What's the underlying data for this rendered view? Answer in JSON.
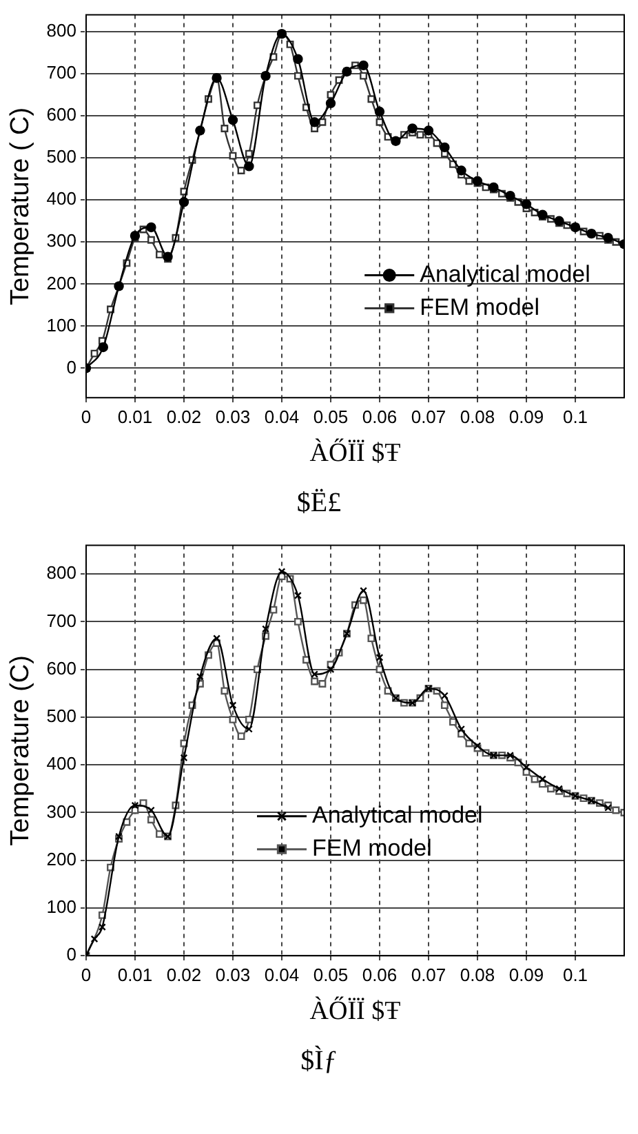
{
  "chart_data": [
    {
      "type": "line",
      "ylabel": "Temperature ( C)",
      "xlabel": "ÀŐÏÏ $Ŧ",
      "annotations": [
        "$Ë£"
      ],
      "xlim": [
        0,
        0.11
      ],
      "xticks": [
        0,
        0.01,
        0.02,
        0.03,
        0.04,
        0.05,
        0.06,
        0.07,
        0.08,
        0.09,
        0.1
      ],
      "ylim": [
        -70,
        840
      ],
      "yticks": [
        0,
        100,
        200,
        300,
        400,
        500,
        600,
        700,
        800
      ],
      "grid": true,
      "legend": "center right",
      "series": [
        {
          "name": "Analytical model",
          "color": "#000000",
          "marker": "circle",
          "x": [
            0,
            0.0035,
            0.0067,
            0.01,
            0.0133,
            0.0167,
            0.02,
            0.0233,
            0.0267,
            0.03,
            0.0333,
            0.0367,
            0.04,
            0.0433,
            0.0467,
            0.05,
            0.0533,
            0.0567,
            0.06,
            0.0633,
            0.0667,
            0.07,
            0.0733,
            0.0767,
            0.08,
            0.0833,
            0.0867,
            0.09,
            0.0933,
            0.0967,
            0.1,
            0.1033,
            0.1067,
            0.11
          ],
          "values": [
            0,
            50,
            195,
            315,
            335,
            265,
            395,
            565,
            690,
            590,
            480,
            695,
            795,
            735,
            585,
            630,
            705,
            720,
            610,
            540,
            570,
            565,
            525,
            470,
            445,
            430,
            410,
            390,
            365,
            350,
            335,
            320,
            310,
            295
          ]
        },
        {
          "name": "FEM model",
          "color": "#333333",
          "marker": "square",
          "x": [
            0,
            0.0017,
            0.0033,
            0.005,
            0.0067,
            0.0083,
            0.01,
            0.0117,
            0.0133,
            0.015,
            0.0167,
            0.0183,
            0.02,
            0.0217,
            0.0233,
            0.025,
            0.0267,
            0.0283,
            0.03,
            0.0317,
            0.0333,
            0.035,
            0.0367,
            0.0383,
            0.04,
            0.0417,
            0.0433,
            0.045,
            0.0467,
            0.0483,
            0.05,
            0.0517,
            0.0533,
            0.055,
            0.0567,
            0.0583,
            0.06,
            0.0617,
            0.0633,
            0.065,
            0.0667,
            0.0683,
            0.07,
            0.0717,
            0.0733,
            0.075,
            0.0767,
            0.0783,
            0.08,
            0.0817,
            0.0833,
            0.085,
            0.0867,
            0.0883,
            0.09,
            0.0917,
            0.0933,
            0.095,
            0.0967,
            0.0983,
            0.1,
            0.1017,
            0.1033,
            0.105,
            0.1067,
            0.1083,
            0.11
          ],
          "values": [
            0,
            35,
            65,
            140,
            195,
            250,
            310,
            330,
            305,
            270,
            260,
            310,
            420,
            495,
            565,
            640,
            690,
            570,
            505,
            470,
            510,
            625,
            695,
            740,
            795,
            770,
            695,
            620,
            570,
            585,
            650,
            685,
            705,
            720,
            695,
            640,
            585,
            550,
            540,
            555,
            560,
            555,
            555,
            535,
            510,
            485,
            460,
            445,
            440,
            430,
            425,
            415,
            405,
            395,
            380,
            370,
            360,
            355,
            345,
            340,
            335,
            325,
            320,
            315,
            305,
            300,
            295
          ]
        }
      ]
    },
    {
      "type": "line",
      "ylabel": "Temperature (C)",
      "xlabel": "ÀŐÏÏ $Ŧ",
      "annotations": [
        "$Ìƒ"
      ],
      "xlim": [
        0,
        0.11
      ],
      "xticks": [
        0,
        0.01,
        0.02,
        0.03,
        0.04,
        0.05,
        0.06,
        0.07,
        0.08,
        0.09,
        0.1
      ],
      "ylim": [
        0,
        860
      ],
      "yticks": [
        0,
        100,
        200,
        300,
        400,
        500,
        600,
        700,
        800
      ],
      "grid": true,
      "legend": "center",
      "series": [
        {
          "name": "Analytical model",
          "color": "#000000",
          "marker": "cross",
          "x": [
            0,
            0.0017,
            0.0033,
            0.0067,
            0.01,
            0.0133,
            0.0167,
            0.02,
            0.0233,
            0.0267,
            0.03,
            0.0333,
            0.0367,
            0.04,
            0.0433,
            0.0467,
            0.05,
            0.0533,
            0.0567,
            0.06,
            0.0633,
            0.0667,
            0.07,
            0.0733,
            0.0767,
            0.08,
            0.0833,
            0.0867,
            0.09,
            0.0933,
            0.0967,
            0.1,
            0.1033,
            0.1067
          ],
          "values": [
            0,
            35,
            60,
            250,
            315,
            305,
            250,
            415,
            585,
            665,
            525,
            475,
            685,
            805,
            755,
            590,
            600,
            675,
            765,
            625,
            540,
            530,
            560,
            545,
            475,
            440,
            420,
            420,
            395,
            370,
            350,
            335,
            325,
            310
          ]
        },
        {
          "name": "FEM model",
          "color": "#555555",
          "marker": "square",
          "x": [
            0,
            0.0033,
            0.005,
            0.0067,
            0.0083,
            0.01,
            0.0117,
            0.0133,
            0.015,
            0.0167,
            0.0183,
            0.02,
            0.0217,
            0.0233,
            0.025,
            0.0267,
            0.0283,
            0.03,
            0.0317,
            0.0333,
            0.035,
            0.0367,
            0.0383,
            0.04,
            0.0417,
            0.0433,
            0.045,
            0.0467,
            0.0483,
            0.05,
            0.0517,
            0.0533,
            0.055,
            0.0567,
            0.0583,
            0.06,
            0.0617,
            0.0633,
            0.065,
            0.0667,
            0.0683,
            0.07,
            0.0717,
            0.0733,
            0.075,
            0.0767,
            0.0783,
            0.08,
            0.0817,
            0.0833,
            0.085,
            0.0867,
            0.0883,
            0.09,
            0.0917,
            0.0933,
            0.095,
            0.0967,
            0.0983,
            0.1,
            0.1017,
            0.1033,
            0.105,
            0.1067,
            0.1083,
            0.11
          ],
          "values": [
            0,
            85,
            185,
            245,
            280,
            305,
            320,
            285,
            255,
            250,
            315,
            445,
            525,
            570,
            630,
            655,
            555,
            495,
            460,
            495,
            600,
            670,
            725,
            795,
            790,
            700,
            620,
            575,
            570,
            610,
            635,
            675,
            735,
            745,
            665,
            600,
            555,
            540,
            530,
            530,
            540,
            560,
            555,
            525,
            490,
            465,
            445,
            435,
            425,
            420,
            420,
            415,
            405,
            385,
            370,
            360,
            350,
            345,
            340,
            335,
            330,
            325,
            320,
            315,
            305,
            300
          ]
        }
      ]
    }
  ]
}
